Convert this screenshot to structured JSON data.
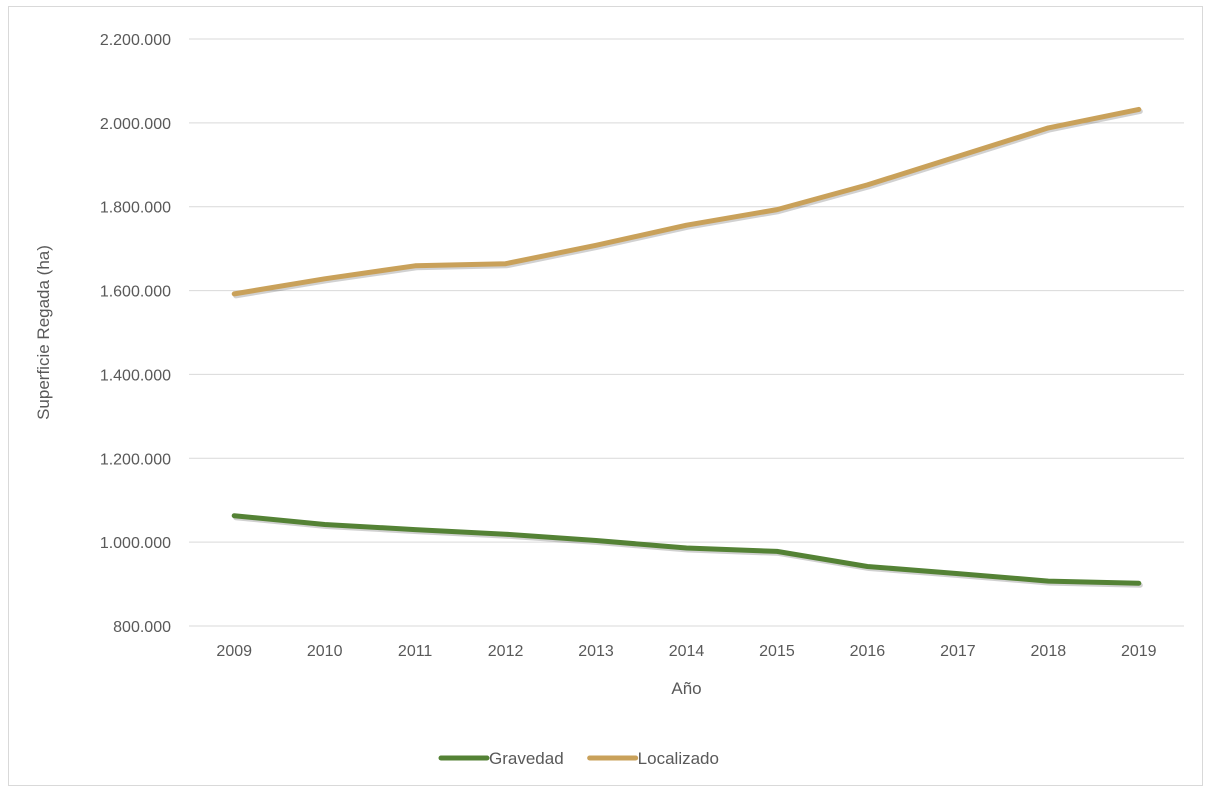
{
  "chart_data": {
    "type": "line",
    "title": "",
    "xlabel": "Año",
    "ylabel": "Superficie Regada (ha)",
    "categories": [
      "2009",
      "2010",
      "2011",
      "2012",
      "2013",
      "2014",
      "2015",
      "2016",
      "2017",
      "2018",
      "2019"
    ],
    "ylim": [
      800000,
      2200000
    ],
    "yticks": [
      800000,
      1000000,
      1200000,
      1400000,
      1600000,
      1800000,
      2000000,
      2200000
    ],
    "ytick_labels": [
      "800.000",
      "1.000.000",
      "1.200.000",
      "1.400.000",
      "1.600.000",
      "1.800.000",
      "2.000.000",
      "2.200.000"
    ],
    "grid": true,
    "legend_position": "bottom",
    "series": [
      {
        "name": "Gravedad",
        "color": "#548235",
        "values": [
          1063000,
          1042000,
          1030000,
          1019000,
          1004000,
          986000,
          978000,
          942000,
          925000,
          907000,
          902000
        ]
      },
      {
        "name": "Localizado",
        "color": "#C9A15A",
        "values": [
          1592000,
          1628000,
          1659000,
          1664000,
          1708000,
          1756000,
          1793000,
          1852000,
          1920000,
          1988000,
          2032000
        ]
      }
    ]
  }
}
